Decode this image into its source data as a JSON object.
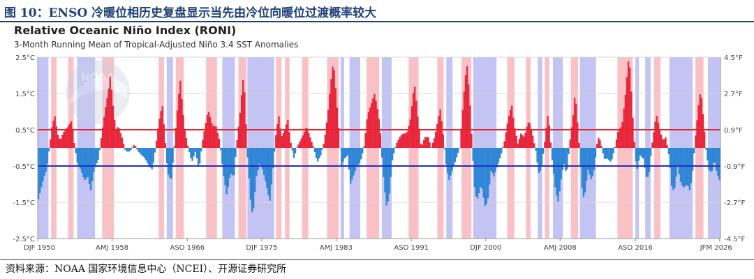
{
  "figure": {
    "title": "图 10：ENSO 冷暖位相历史复盘显示当先由冷位向暖位过渡概率较大",
    "source": "资料来源：NOAA 国家环境信息中心（NCEI）、开源证券研究所"
  },
  "logo": {
    "text": "NOAA"
  },
  "chart_data": {
    "type": "bar",
    "title": "Relative Oceanic Niño Index (RONI)",
    "subtitle": "3-Month Running Mean of Tropical-Adjusted Niño 3.4 SST Anomalies",
    "x_start": 1950.0,
    "x_end": 2026.2,
    "ylim": [
      -2.5,
      2.5
    ],
    "y_ticks_left": [
      "2.5°C",
      "1.5°C",
      "0.5°C",
      "-0.5°C",
      "-1.5°C",
      "-2.5°C"
    ],
    "y_ticks_right": [
      "4.5°F",
      "2.7°F",
      "0.9°F",
      "-0.9°F",
      "-2.7°F",
      "-4.5°F"
    ],
    "x_ticks": [
      {
        "label": "DJF 1950",
        "t": 1950.0
      },
      {
        "label": "AMJ 1958",
        "t": 1958.3
      },
      {
        "label": "ASO 1966",
        "t": 1966.7
      },
      {
        "label": "DJF 1975",
        "t": 1975.0
      },
      {
        "label": "AMJ 1983",
        "t": 1983.3
      },
      {
        "label": "ASO 1991",
        "t": 1991.7
      },
      {
        "label": "DJF 2000",
        "t": 2000.0
      },
      {
        "label": "AMJ 2008",
        "t": 2008.3
      },
      {
        "label": "ASO 2016",
        "t": 2016.7
      },
      {
        "label": "JFM 2026",
        "t": 2026.1
      }
    ],
    "threshold_lines": [
      {
        "value": 0.5,
        "color": "#e8222a"
      },
      {
        "value": -0.5,
        "color": "#1f2fc4"
      }
    ],
    "colors": {
      "positive_bar": "#e8263c",
      "negative_bar": "#2f86d6",
      "el_nino_band": "#f9c1c6",
      "la_nina_band": "#c4c4f4"
    },
    "series": [
      {
        "name": "RONI",
        "keypoints": [
          [
            1950.0,
            -1.5
          ],
          [
            1950.3,
            -1.2
          ],
          [
            1950.7,
            -0.8
          ],
          [
            1951.0,
            -0.6
          ],
          [
            1951.3,
            0.0
          ],
          [
            1951.6,
            0.6
          ],
          [
            1951.9,
            0.9
          ],
          [
            1952.2,
            0.4
          ],
          [
            1952.5,
            0.2
          ],
          [
            1952.8,
            0.4
          ],
          [
            1953.1,
            0.5
          ],
          [
            1953.4,
            0.6
          ],
          [
            1953.8,
            0.75
          ],
          [
            1954.1,
            0.1
          ],
          [
            1954.4,
            -0.4
          ],
          [
            1954.8,
            -0.6
          ],
          [
            1955.2,
            -0.9
          ],
          [
            1955.6,
            -0.8
          ],
          [
            1955.9,
            -1.2
          ],
          [
            1956.3,
            -0.6
          ],
          [
            1956.8,
            -0.3
          ],
          [
            1957.1,
            0.3
          ],
          [
            1957.5,
            1.0
          ],
          [
            1957.9,
            1.6
          ],
          [
            1958.1,
            2.0
          ],
          [
            1958.4,
            1.2
          ],
          [
            1958.7,
            0.5
          ],
          [
            1959.0,
            0.6
          ],
          [
            1959.4,
            0.3
          ],
          [
            1959.8,
            -0.1
          ],
          [
            1960.3,
            -0.1
          ],
          [
            1960.8,
            0.1
          ],
          [
            1961.2,
            -0.1
          ],
          [
            1961.6,
            -0.2
          ],
          [
            1962.0,
            -0.3
          ],
          [
            1962.4,
            -0.5
          ],
          [
            1962.8,
            -0.6
          ],
          [
            1963.1,
            -0.1
          ],
          [
            1963.5,
            0.7
          ],
          [
            1963.9,
            1.2
          ],
          [
            1964.2,
            0.3
          ],
          [
            1964.5,
            -0.7
          ],
          [
            1964.9,
            -0.9
          ],
          [
            1965.2,
            -0.1
          ],
          [
            1965.5,
            0.8
          ],
          [
            1965.9,
            1.9
          ],
          [
            1966.1,
            1.3
          ],
          [
            1966.4,
            0.5
          ],
          [
            1966.8,
            0.0
          ],
          [
            1967.2,
            -0.4
          ],
          [
            1967.6,
            -0.1
          ],
          [
            1968.0,
            -0.6
          ],
          [
            1968.4,
            0.2
          ],
          [
            1968.9,
            0.9
          ],
          [
            1969.1,
            1.0
          ],
          [
            1969.5,
            0.6
          ],
          [
            1969.9,
            0.6
          ],
          [
            1970.3,
            0.2
          ],
          [
            1970.7,
            -0.7
          ],
          [
            1971.1,
            -1.3
          ],
          [
            1971.5,
            -0.7
          ],
          [
            1971.9,
            -0.8
          ],
          [
            1972.2,
            0.1
          ],
          [
            1972.6,
            1.0
          ],
          [
            1972.9,
            1.9
          ],
          [
            1973.1,
            1.5
          ],
          [
            1973.4,
            -0.2
          ],
          [
            1973.8,
            -1.6
          ],
          [
            1974.0,
            -1.9
          ],
          [
            1974.4,
            -0.8
          ],
          [
            1974.8,
            -0.4
          ],
          [
            1975.1,
            -0.6
          ],
          [
            1975.5,
            -1.0
          ],
          [
            1975.9,
            -1.5
          ],
          [
            1976.2,
            -0.7
          ],
          [
            1976.6,
            0.4
          ],
          [
            1976.9,
            0.9
          ],
          [
            1977.2,
            0.3
          ],
          [
            1977.6,
            0.5
          ],
          [
            1977.9,
            0.8
          ],
          [
            1978.2,
            0.2
          ],
          [
            1978.6,
            -0.3
          ],
          [
            1978.9,
            0.0
          ],
          [
            1979.3,
            0.2
          ],
          [
            1979.7,
            0.4
          ],
          [
            1980.0,
            0.6
          ],
          [
            1980.4,
            0.3
          ],
          [
            1980.8,
            0.0
          ],
          [
            1981.2,
            -0.4
          ],
          [
            1981.6,
            -0.2
          ],
          [
            1982.0,
            0.2
          ],
          [
            1982.4,
            1.0
          ],
          [
            1982.7,
            1.8
          ],
          [
            1983.0,
            2.4
          ],
          [
            1983.3,
            1.5
          ],
          [
            1983.6,
            0.5
          ],
          [
            1983.9,
            -0.5
          ],
          [
            1984.2,
            -0.3
          ],
          [
            1984.6,
            -0.2
          ],
          [
            1984.9,
            -1.0
          ],
          [
            1985.2,
            -0.8
          ],
          [
            1985.6,
            -0.5
          ],
          [
            1986.0,
            -0.4
          ],
          [
            1986.4,
            0.0
          ],
          [
            1986.8,
            0.9
          ],
          [
            1987.2,
            1.2
          ],
          [
            1987.6,
            1.5
          ],
          [
            1987.9,
            1.1
          ],
          [
            1988.2,
            0.6
          ],
          [
            1988.5,
            -0.6
          ],
          [
            1988.9,
            -1.6
          ],
          [
            1989.2,
            -1.4
          ],
          [
            1989.6,
            -0.3
          ],
          [
            1990.0,
            0.1
          ],
          [
            1990.4,
            0.3
          ],
          [
            1990.8,
            0.4
          ],
          [
            1991.2,
            0.4
          ],
          [
            1991.6,
            0.8
          ],
          [
            1991.9,
            1.5
          ],
          [
            1992.1,
            1.7
          ],
          [
            1992.4,
            0.9
          ],
          [
            1992.8,
            0.0
          ],
          [
            1993.2,
            0.3
          ],
          [
            1993.6,
            0.3
          ],
          [
            1993.9,
            0.0
          ],
          [
            1994.3,
            0.3
          ],
          [
            1994.7,
            0.8
          ],
          [
            1994.9,
            1.1
          ],
          [
            1995.2,
            0.5
          ],
          [
            1995.6,
            -0.5
          ],
          [
            1995.9,
            -0.9
          ],
          [
            1996.3,
            -0.6
          ],
          [
            1996.7,
            -0.3
          ],
          [
            1997.1,
            0.0
          ],
          [
            1997.4,
            1.0
          ],
          [
            1997.7,
            1.9
          ],
          [
            1997.9,
            2.3
          ],
          [
            1998.2,
            1.4
          ],
          [
            1998.5,
            0.0
          ],
          [
            1998.8,
            -1.3
          ],
          [
            1999.1,
            -1.4
          ],
          [
            1999.5,
            -1.0
          ],
          [
            1999.9,
            -1.6
          ],
          [
            2000.2,
            -1.5
          ],
          [
            2000.6,
            -0.6
          ],
          [
            2000.9,
            -0.8
          ],
          [
            2001.3,
            -0.5
          ],
          [
            2001.7,
            -0.2
          ],
          [
            2002.1,
            0.2
          ],
          [
            2002.5,
            0.8
          ],
          [
            2002.9,
            1.2
          ],
          [
            2003.2,
            0.6
          ],
          [
            2003.6,
            0.1
          ],
          [
            2003.9,
            0.4
          ],
          [
            2004.3,
            0.3
          ],
          [
            2004.7,
            0.7
          ],
          [
            2004.9,
            0.7
          ],
          [
            2005.2,
            0.4
          ],
          [
            2005.6,
            -0.1
          ],
          [
            2005.9,
            -0.7
          ],
          [
            2006.2,
            -0.6
          ],
          [
            2006.6,
            0.2
          ],
          [
            2006.9,
            0.9
          ],
          [
            2007.1,
            0.6
          ],
          [
            2007.4,
            -0.3
          ],
          [
            2007.8,
            -1.2
          ],
          [
            2008.1,
            -1.5
          ],
          [
            2008.5,
            -0.7
          ],
          [
            2008.8,
            -0.4
          ],
          [
            2009.0,
            -0.8
          ],
          [
            2009.4,
            0.2
          ],
          [
            2009.8,
            1.0
          ],
          [
            2009.9,
            1.4
          ],
          [
            2010.1,
            1.2
          ],
          [
            2010.4,
            0.2
          ],
          [
            2010.8,
            -1.3
          ],
          [
            2011.0,
            -1.4
          ],
          [
            2011.4,
            -0.6
          ],
          [
            2011.8,
            -0.9
          ],
          [
            2012.1,
            -0.6
          ],
          [
            2012.5,
            0.3
          ],
          [
            2012.8,
            0.2
          ],
          [
            2013.2,
            -0.3
          ],
          [
            2013.6,
            -0.3
          ],
          [
            2014.0,
            -0.4
          ],
          [
            2014.4,
            0.0
          ],
          [
            2014.8,
            0.5
          ],
          [
            2015.2,
            0.6
          ],
          [
            2015.6,
            1.5
          ],
          [
            2015.9,
            2.4
          ],
          [
            2016.1,
            2.2
          ],
          [
            2016.4,
            0.9
          ],
          [
            2016.7,
            -0.3
          ],
          [
            2016.9,
            -0.6
          ],
          [
            2017.2,
            -0.2
          ],
          [
            2017.6,
            -0.3
          ],
          [
            2017.9,
            -0.8
          ],
          [
            2018.2,
            -0.8
          ],
          [
            2018.5,
            0.0
          ],
          [
            2018.9,
            0.7
          ],
          [
            2019.1,
            0.9
          ],
          [
            2019.4,
            0.5
          ],
          [
            2019.8,
            0.2
          ],
          [
            2020.1,
            0.3
          ],
          [
            2020.5,
            -0.3
          ],
          [
            2020.8,
            -1.2
          ],
          [
            2021.1,
            -1.1
          ],
          [
            2021.4,
            -0.5
          ],
          [
            2021.8,
            -1.0
          ],
          [
            2022.1,
            -1.1
          ],
          [
            2022.5,
            -1.0
          ],
          [
            2022.8,
            -1.2
          ],
          [
            2023.1,
            -0.6
          ],
          [
            2023.4,
            0.3
          ],
          [
            2023.8,
            1.3
          ],
          [
            2024.0,
            1.6
          ],
          [
            2024.3,
            0.8
          ],
          [
            2024.6,
            -0.1
          ],
          [
            2024.9,
            -0.6
          ],
          [
            2025.2,
            -0.7
          ],
          [
            2025.5,
            -0.3
          ],
          [
            2025.8,
            -0.7
          ],
          [
            2026.1,
            -0.9
          ]
        ]
      }
    ],
    "el_nino_periods": [
      [
        1951.5,
        1952.1
      ],
      [
        1953.4,
        1954.0
      ],
      [
        1957.2,
        1958.5
      ],
      [
        1963.5,
        1964.1
      ],
      [
        1965.4,
        1966.3
      ],
      [
        1968.8,
        1970.0
      ],
      [
        1972.4,
        1973.3
      ],
      [
        1976.6,
        1977.2
      ],
      [
        1977.6,
        1978.1
      ],
      [
        1979.5,
        1980.2
      ],
      [
        1982.3,
        1983.6
      ],
      [
        1986.7,
        1988.1
      ],
      [
        1991.4,
        1992.5
      ],
      [
        1994.6,
        1995.3
      ],
      [
        1997.3,
        1998.4
      ],
      [
        2002.4,
        2003.2
      ],
      [
        2004.5,
        2005.0
      ],
      [
        2006.6,
        2007.1
      ],
      [
        2009.5,
        2010.3
      ],
      [
        2014.7,
        2015.3
      ],
      [
        2015.3,
        2016.4
      ],
      [
        2018.8,
        2019.5
      ],
      [
        2023.4,
        2024.3
      ]
    ],
    "la_nina_periods": [
      [
        1950.0,
        1951.2
      ],
      [
        1954.4,
        1956.4
      ],
      [
        1964.4,
        1965.1
      ],
      [
        1970.6,
        1972.0
      ],
      [
        1973.4,
        1976.4
      ],
      [
        1983.8,
        1984.2
      ],
      [
        1984.8,
        1986.0
      ],
      [
        1988.4,
        1989.5
      ],
      [
        1995.6,
        1996.3
      ],
      [
        1998.6,
        2001.2
      ],
      [
        2005.8,
        2006.3
      ],
      [
        2007.5,
        2008.6
      ],
      [
        2010.5,
        2012.3
      ],
      [
        2016.7,
        2017.1
      ],
      [
        2017.8,
        2018.4
      ],
      [
        2020.5,
        2023.1
      ],
      [
        2024.8,
        2026.2
      ]
    ]
  }
}
